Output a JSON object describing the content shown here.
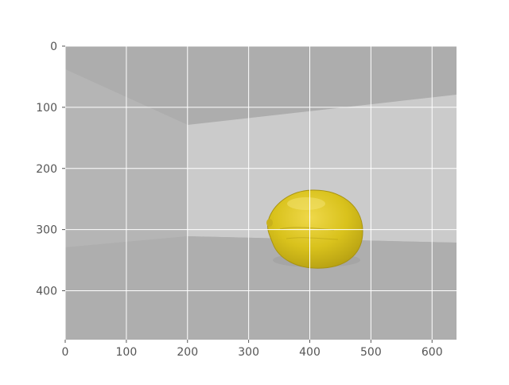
{
  "figure": {
    "kind": "image-display (imshow) with axes",
    "image_description": "A yellow lemon resting on a light grey surface in front of grey walls",
    "x_axis": {
      "ticks": [
        "0",
        "100",
        "200",
        "300",
        "400",
        "500",
        "600"
      ],
      "range": [
        0,
        640
      ]
    },
    "y_axis": {
      "ticks": [
        "0",
        "100",
        "200",
        "300",
        "400"
      ],
      "range": [
        480,
        0
      ],
      "inverted": true
    },
    "grid": true
  },
  "colors": {
    "background": "#ffffff",
    "grid": "#ffffff",
    "tick_text": "#555555",
    "wall_left": "#b4b4b4",
    "wall_top": "#adadad",
    "floor_back": "#cbcbcb",
    "floor_front": "#aeaeae",
    "lemon_body": "#d9c21c",
    "lemon_shadow": "#b59f12"
  }
}
